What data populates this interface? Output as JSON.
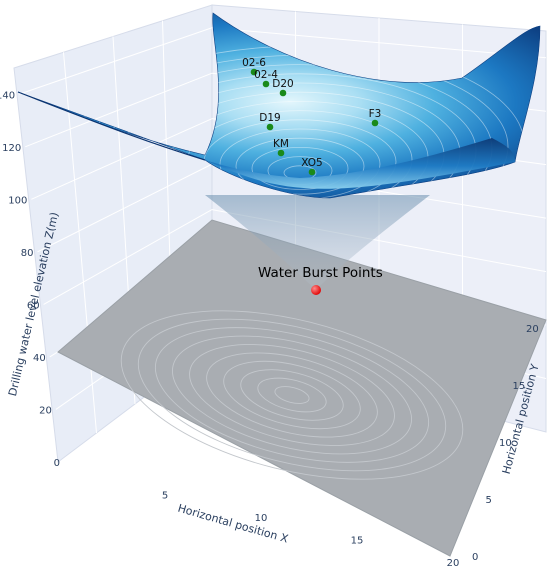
{
  "chart_data": {
    "type": "surface3d",
    "title": "",
    "xlabel": "Horizontal position X",
    "ylabel": "Horizontal position Y",
    "zlabel": "Drilling water level elevation Z(m)",
    "x_ticks": [
      "0",
      "5",
      "10",
      "15",
      "20"
    ],
    "y_ticks": [
      "0",
      "5",
      "10",
      "15",
      "20"
    ],
    "z_ticks": [
      "20",
      "40",
      "60",
      "80",
      "100",
      "120",
      "140"
    ],
    "xlim": [
      0,
      20
    ],
    "ylim": [
      0,
      20
    ],
    "zlim": [
      0,
      150
    ],
    "colors": {
      "surface_dark": "#0e3f80",
      "surface_mid": "#1a7fc7",
      "surface_light": "#bfe8f7",
      "well_point": "#1a8a1a",
      "burst_point": "#ff1414",
      "floor": "#a9adb2"
    },
    "surface": {
      "description_center": [
        10,
        10
      ],
      "min_z": 10,
      "max_z": 150
    },
    "wells": [
      {
        "name": "02-6",
        "x": 8.3,
        "y": 17.4,
        "z": 147
      },
      {
        "name": "02-4",
        "x": 9.0,
        "y": 17.0,
        "z": 146
      },
      {
        "name": "D20",
        "x": 9.4,
        "y": 16.3,
        "z": 145
      },
      {
        "name": "D19",
        "x": 9.6,
        "y": 14.0,
        "z": 128
      },
      {
        "name": "F3",
        "x": 13.6,
        "y": 14.8,
        "z": 130
      },
      {
        "name": "KM",
        "x": 10.6,
        "y": 12.2,
        "z": 116
      },
      {
        "name": "XO5",
        "x": 11.6,
        "y": 11.0,
        "z": 112
      }
    ],
    "burst_point": {
      "name": "Water Burst Points",
      "x": 10,
      "y": 10,
      "z": 10
    }
  }
}
